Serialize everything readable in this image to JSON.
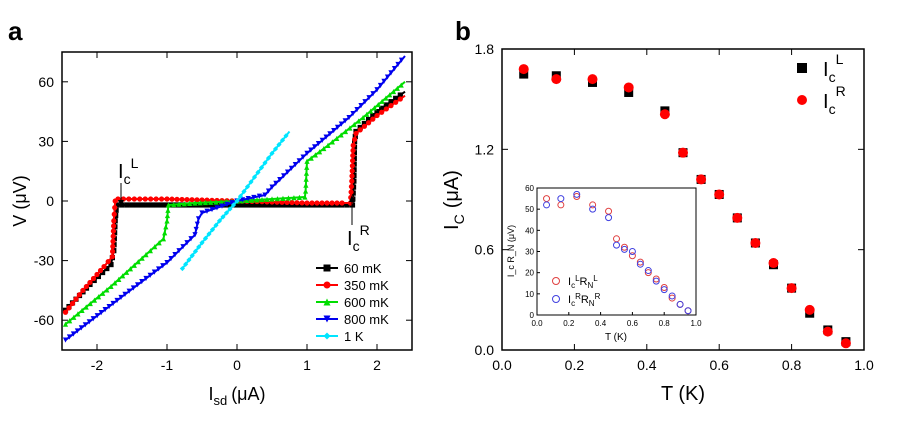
{
  "chart_data": [
    {
      "panel": "a",
      "type": "line",
      "xlabel_main": "I",
      "xlabel_sub": "sd",
      "xlabel_unit": "(μA)",
      "ylabel": "V (μV)",
      "xlim": [
        -2.5,
        2.5
      ],
      "ylim": [
        -75,
        75
      ],
      "xticks": [
        -2,
        -1,
        0,
        1,
        2
      ],
      "yticks": [
        -60,
        -30,
        0,
        30,
        60
      ],
      "annotations": {
        "icl_main": "I",
        "icl_sub": "c",
        "icl_sup": "L",
        "icr_main": "I",
        "icr_sub": "c",
        "icr_sup": "R"
      },
      "legend_position": "bottom-right",
      "series": [
        {
          "name": "60 mK",
          "color": "#000000",
          "marker": "square",
          "x": [
            -2.45,
            -2.1,
            -1.8,
            -1.76,
            -1.74,
            -1.72,
            -1.5,
            -1,
            0,
            1,
            1.5,
            1.65,
            1.67,
            1.68,
            1.7,
            2,
            2.4
          ],
          "y": [
            -55,
            -42,
            -32,
            -25,
            -10,
            -2,
            -2,
            -2,
            -2,
            -2,
            -2,
            -2,
            10,
            30,
            35,
            45,
            55
          ]
        },
        {
          "name": "350 mK",
          "color": "#ff0000",
          "marker": "circle",
          "x": [
            -2.45,
            -2.2,
            -1.9,
            -1.78,
            -1.76,
            -1.74,
            -1.7,
            -1,
            0,
            1,
            1.5,
            1.62,
            1.64,
            1.66,
            1.7,
            2,
            2.4
          ],
          "y": [
            -56,
            -45,
            -33,
            -28,
            -10,
            0,
            1,
            1,
            0,
            -1,
            -1,
            -1,
            10,
            28,
            34,
            43,
            53
          ]
        },
        {
          "name": "600 mK",
          "color": "#00dd00",
          "marker": "triangle",
          "x": [
            -2.45,
            -1.8,
            -1.3,
            -1.05,
            -1.0,
            -0.98,
            -0.6,
            0,
            0.5,
            0.97,
            0.98,
            1.0,
            1.3,
            1.8,
            2.4
          ],
          "y": [
            -62,
            -43,
            -27,
            -19,
            -10,
            -2,
            -1,
            0,
            1,
            2,
            5,
            20,
            28,
            42,
            60
          ]
        },
        {
          "name": "800 mK",
          "color": "#0000ee",
          "marker": "triangle-down",
          "x": [
            -2.45,
            -1.6,
            -1.0,
            -0.6,
            -0.55,
            -0.5,
            0,
            0.4,
            0.5,
            1,
            1.6,
            2.0,
            2.4
          ],
          "y": [
            -70,
            -47,
            -31,
            -17,
            -9,
            -6,
            0,
            3,
            7,
            24,
            42,
            56,
            73
          ]
        },
        {
          "name": "1 K",
          "color": "#00e5ff",
          "marker": "diamond",
          "x": [
            -0.78,
            -0.5,
            -0.25,
            0,
            0.25,
            0.5,
            0.75
          ],
          "y": [
            -34,
            -21,
            -10,
            0,
            12,
            24,
            35
          ]
        }
      ]
    },
    {
      "panel": "b",
      "type": "scatter",
      "xlabel": "T (K)",
      "ylabel_main": "I",
      "ylabel_sub": "C",
      "ylabel_unit": "(μA)",
      "xlim": [
        0,
        1.0
      ],
      "ylim": [
        0,
        1.8
      ],
      "xticks": [
        0.0,
        0.2,
        0.4,
        0.6,
        0.8,
        1.0
      ],
      "ytick_labels": [
        "0.0",
        "0.6",
        "1.2",
        "1.8"
      ],
      "legend_position": "top-right",
      "legend": [
        {
          "main": "I",
          "sub": "c",
          "sup": "L"
        },
        {
          "main": "I",
          "sub": "c",
          "sup": "R"
        }
      ],
      "series": [
        {
          "name": "IcL",
          "color": "#000000",
          "marker": "square",
          "x": [
            0.06,
            0.15,
            0.25,
            0.35,
            0.45,
            0.5,
            0.55,
            0.6,
            0.65,
            0.7,
            0.75,
            0.8,
            0.85,
            0.9,
            0.95
          ],
          "y": [
            1.65,
            1.64,
            1.6,
            1.54,
            1.43,
            1.18,
            1.02,
            0.93,
            0.79,
            0.64,
            0.51,
            0.37,
            0.22,
            0.12,
            0.05
          ]
        },
        {
          "name": "IcR",
          "color": "#ff0000",
          "marker": "circle",
          "x": [
            0.06,
            0.15,
            0.25,
            0.35,
            0.45,
            0.5,
            0.55,
            0.6,
            0.65,
            0.7,
            0.75,
            0.8,
            0.85,
            0.9,
            0.95
          ],
          "y": [
            1.68,
            1.62,
            1.62,
            1.57,
            1.41,
            1.18,
            1.02,
            0.93,
            0.79,
            0.64,
            0.52,
            0.37,
            0.24,
            0.11,
            0.04
          ]
        }
      ]
    },
    {
      "panel": "b-inset",
      "type": "scatter",
      "xlabel": "T (K)",
      "ylabel": "I_c R_N (μV)",
      "xlim": [
        0,
        1.0
      ],
      "ylim": [
        0,
        60
      ],
      "xticks": [
        0.0,
        0.2,
        0.4,
        0.6,
        0.8,
        1.0
      ],
      "yticks": [
        0,
        10,
        20,
        30,
        40,
        50,
        60
      ],
      "legend": [
        {
          "text": "IcLRNL",
          "main": "I",
          "sub1": "c",
          "sup1": "L",
          "mid": "R",
          "sub2": "N",
          "sup2": "L"
        },
        {
          "text": "IcRRNR",
          "main": "I",
          "sub1": "c",
          "sup1": "R",
          "mid": "R",
          "sub2": "N",
          "sup2": "R"
        }
      ],
      "series": [
        {
          "name": "IcLRNL",
          "color": "#e04040",
          "marker": "open-circle",
          "x": [
            0.06,
            0.15,
            0.25,
            0.35,
            0.45,
            0.5,
            0.55,
            0.6,
            0.65,
            0.7,
            0.75,
            0.8,
            0.85,
            0.9,
            0.95
          ],
          "y": [
            55,
            52,
            56,
            52,
            49,
            36,
            32,
            28,
            25,
            20,
            17,
            13,
            8,
            5,
            2
          ]
        },
        {
          "name": "IcRRNR",
          "color": "#4040e0",
          "marker": "open-circle",
          "x": [
            0.06,
            0.15,
            0.25,
            0.35,
            0.45,
            0.5,
            0.55,
            0.6,
            0.65,
            0.7,
            0.75,
            0.8,
            0.85,
            0.9,
            0.95
          ],
          "y": [
            52,
            55,
            57,
            50,
            46,
            33,
            31,
            30,
            24,
            21,
            16,
            12,
            9,
            5,
            2
          ]
        }
      ]
    }
  ],
  "panel_labels": {
    "a": "a",
    "b": "b"
  }
}
